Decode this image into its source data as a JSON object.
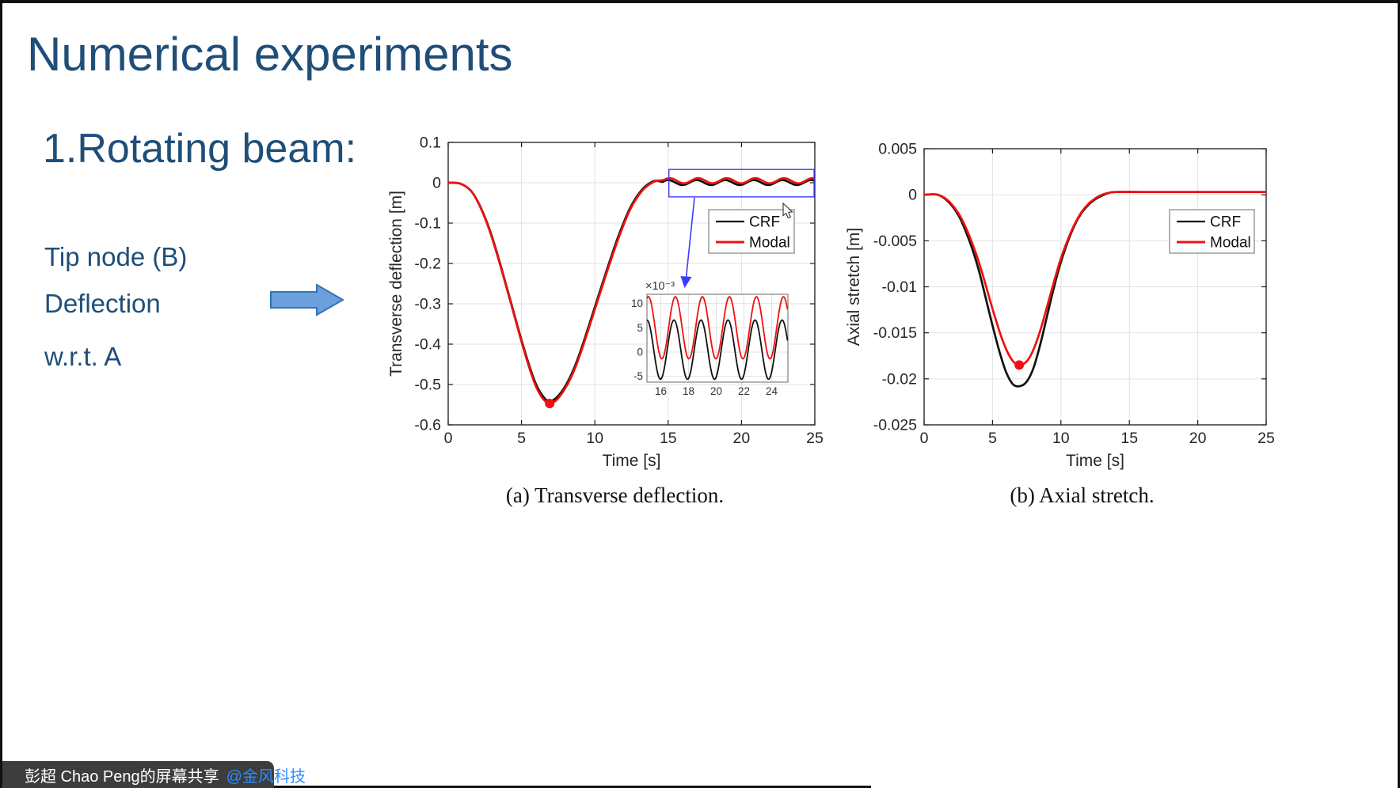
{
  "colors": {
    "slide_text_blue": "#1F4E79",
    "crf_black": "#111111",
    "modal_red": "#F01010",
    "annotation_blue": "#3B3BFF",
    "arrow_fill": "#6CA0DC",
    "arrow_border": "#2E75B6",
    "grid_gray": "#E2E2E2",
    "spine_gray": "#1a1a1a",
    "share_bar_bg": "#3D3D3D",
    "mention_blue": "#2D8CFF",
    "mic_slash_red": "#E02020"
  },
  "slide": {
    "title": "Numerical experiments",
    "subtitle": "1.Rotating beam:",
    "bullets": [
      "Tip node (B)",
      "Deflection",
      "w.r.t. A"
    ]
  },
  "share_bar": {
    "text": "彭超 Chao Peng的屏幕共享 ",
    "mention": "@金风科技",
    "icons": [
      "muted-mic-icon",
      "screen-share-icon"
    ]
  },
  "chart_data": [
    {
      "type": "line",
      "caption": "(a) Transverse deflection.",
      "xlabel": "Time [s]",
      "ylabel": "Transverse deflection [m]",
      "xlim": [
        0,
        25
      ],
      "ylim": [
        -0.6,
        0.1
      ],
      "xticks": [
        0,
        5,
        10,
        15,
        20,
        25
      ],
      "yticks": [
        0.1,
        0,
        -0.1,
        -0.2,
        -0.3,
        -0.4,
        -0.5,
        -0.6
      ],
      "grid": true,
      "legend": {
        "entries": [
          "CRF",
          "Modal"
        ],
        "position": "upper right inside"
      },
      "series": [
        {
          "name": "CRF",
          "color": "#111111",
          "points": [
            [
              0,
              0
            ],
            [
              0.8,
              -0.002
            ],
            [
              1.5,
              -0.018
            ],
            [
              2,
              -0.045
            ],
            [
              2.5,
              -0.085
            ],
            [
              3,
              -0.135
            ],
            [
              3.5,
              -0.195
            ],
            [
              4,
              -0.26
            ],
            [
              4.5,
              -0.325
            ],
            [
              5,
              -0.39
            ],
            [
              5.5,
              -0.45
            ],
            [
              6,
              -0.5
            ],
            [
              6.5,
              -0.531
            ],
            [
              6.9,
              -0.541
            ],
            [
              7.4,
              -0.532
            ],
            [
              8,
              -0.503
            ],
            [
              8.6,
              -0.458
            ],
            [
              9.2,
              -0.398
            ],
            [
              10,
              -0.308
            ],
            [
              10.8,
              -0.218
            ],
            [
              11.6,
              -0.133
            ],
            [
              12.4,
              -0.063
            ],
            [
              13.2,
              -0.018
            ],
            [
              14,
              0.004
            ]
          ],
          "osc": {
            "mean": 0.0005,
            "amp": 0.0061,
            "period": 1.95,
            "peak_t": 15.0,
            "from": 14.6,
            "to": 25,
            "step": 0.1
          }
        },
        {
          "name": "Modal",
          "color": "#F01010",
          "points": [
            [
              0,
              0
            ],
            [
              0.8,
              -0.002
            ],
            [
              1.5,
              -0.018
            ],
            [
              2,
              -0.046
            ],
            [
              2.5,
              -0.087
            ],
            [
              3,
              -0.138
            ],
            [
              3.5,
              -0.198
            ],
            [
              4,
              -0.263
            ],
            [
              4.5,
              -0.328
            ],
            [
              5,
              -0.394
            ],
            [
              5.5,
              -0.455
            ],
            [
              6,
              -0.506
            ],
            [
              6.5,
              -0.537
            ],
            [
              6.92,
              -0.547
            ],
            [
              7.4,
              -0.538
            ],
            [
              8,
              -0.508
            ],
            [
              8.6,
              -0.464
            ],
            [
              9.2,
              -0.404
            ],
            [
              10,
              -0.314
            ],
            [
              10.8,
              -0.224
            ],
            [
              11.6,
              -0.139
            ],
            [
              12.4,
              -0.067
            ],
            [
              13.2,
              -0.021
            ],
            [
              14,
              0.002
            ]
          ],
          "osc": {
            "mean": 0.005,
            "amp": 0.0064,
            "period": 1.95,
            "peak_t": 15.1,
            "from": 14.7,
            "to": 25,
            "step": 0.1
          },
          "marker": [
            6.92,
            -0.547
          ]
        }
      ],
      "zoom_rect": {
        "x0": 15.05,
        "x1": 24.95,
        "y0": -0.035,
        "y1": 0.033
      },
      "inset": {
        "multiplier": "×10⁻³",
        "xlim": [
          15.0,
          25.17
        ],
        "ylim": [
          -0.0062,
          0.0119
        ],
        "xticks": [
          16,
          18,
          20,
          22,
          24
        ],
        "yticks": [
          0.01,
          0.005,
          0,
          -0.005
        ],
        "ytick_labels": [
          "10",
          "5",
          "0",
          "-5"
        ],
        "series": [
          {
            "name": "CRF",
            "color": "#111111",
            "osc": {
              "mean": 0.0005,
              "amp": 0.0061,
              "period": 1.95,
              "peak_t": 15.0,
              "from": 15.0,
              "to": 25.17,
              "step": 0.06
            }
          },
          {
            "name": "Modal",
            "color": "#F01010",
            "osc": {
              "mean": 0.005,
              "amp": 0.0064,
              "period": 1.95,
              "peak_t": 15.1,
              "from": 15.0,
              "to": 25.17,
              "step": 0.06
            }
          }
        ]
      }
    },
    {
      "type": "line",
      "caption": "(b) Axial stretch.",
      "xlabel": "Time [s]",
      "ylabel": "Axial stretch [m]",
      "xlim": [
        0,
        25
      ],
      "ylim": [
        -0.025,
        0.005
      ],
      "xticks": [
        0,
        5,
        10,
        15,
        20,
        25
      ],
      "yticks": [
        0.005,
        0,
        -0.005,
        -0.01,
        -0.015,
        -0.02,
        -0.025
      ],
      "grid": true,
      "legend": {
        "entries": [
          "CRF",
          "Modal"
        ],
        "position": "upper right inside"
      },
      "series": [
        {
          "name": "CRF",
          "color": "#111111",
          "points": [
            [
              0,
              0
            ],
            [
              1,
              0
            ],
            [
              1.8,
              -0.0008
            ],
            [
              2.5,
              -0.0022
            ],
            [
              3,
              -0.0038
            ],
            [
              3.5,
              -0.0058
            ],
            [
              4,
              -0.0082
            ],
            [
              4.5,
              -0.0112
            ],
            [
              5,
              -0.0142
            ],
            [
              5.5,
              -0.017
            ],
            [
              6,
              -0.0193
            ],
            [
              6.5,
              -0.0206
            ],
            [
              7,
              -0.0208
            ],
            [
              7.5,
              -0.0203
            ],
            [
              8,
              -0.0188
            ],
            [
              8.5,
              -0.0162
            ],
            [
              9,
              -0.0131
            ],
            [
              9.5,
              -0.01
            ],
            [
              10,
              -0.0073
            ],
            [
              10.5,
              -0.0051
            ],
            [
              11,
              -0.0033
            ],
            [
              11.5,
              -0.002
            ],
            [
              12,
              -0.0011
            ],
            [
              12.5,
              -0.0005
            ],
            [
              13,
              -0.0001
            ],
            [
              13.5,
              0.0002
            ],
            [
              14,
              0.0003
            ],
            [
              16,
              0.0003
            ],
            [
              20,
              0.0003
            ],
            [
              25,
              0.0003
            ]
          ]
        },
        {
          "name": "Modal",
          "color": "#F01010",
          "points": [
            [
              0,
              0
            ],
            [
              1,
              0
            ],
            [
              1.8,
              -0.0007
            ],
            [
              2.5,
              -0.002
            ],
            [
              3,
              -0.0034
            ],
            [
              3.5,
              -0.0052
            ],
            [
              4,
              -0.0073
            ],
            [
              4.5,
              -0.0098
            ],
            [
              5,
              -0.0124
            ],
            [
              5.5,
              -0.0148
            ],
            [
              6,
              -0.0168
            ],
            [
              6.5,
              -0.0181
            ],
            [
              6.95,
              -0.0185
            ],
            [
              7.5,
              -0.0181
            ],
            [
              8,
              -0.0168
            ],
            [
              8.5,
              -0.0147
            ],
            [
              9,
              -0.0121
            ],
            [
              9.5,
              -0.0094
            ],
            [
              10,
              -0.0069
            ],
            [
              10.5,
              -0.0049
            ],
            [
              11,
              -0.0032
            ],
            [
              11.5,
              -0.0019
            ],
            [
              12,
              -0.001
            ],
            [
              12.5,
              -0.0004
            ],
            [
              13,
              0.0
            ],
            [
              13.5,
              0.0002
            ],
            [
              14,
              0.0003
            ],
            [
              16,
              0.0003
            ],
            [
              20,
              0.0003
            ],
            [
              25,
              0.0003
            ]
          ],
          "marker": [
            6.95,
            -0.0185
          ]
        }
      ]
    }
  ]
}
